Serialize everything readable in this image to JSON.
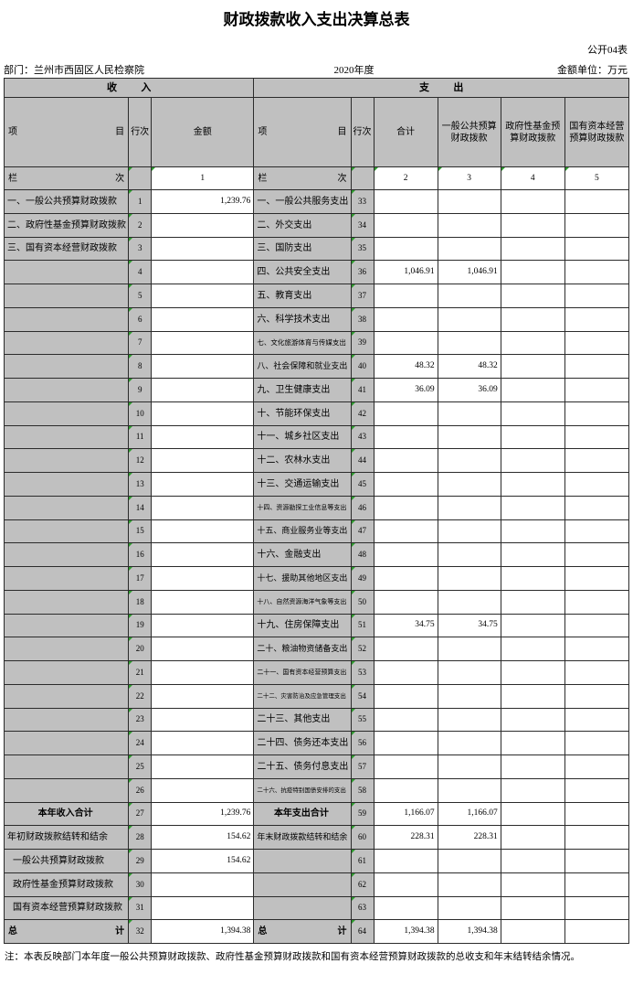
{
  "title": "财政拨款收入支出决算总表",
  "meta": {
    "table_code": "公开04表",
    "department": "部门：兰州市西固区人民检察院",
    "year": "2020年度",
    "unit": "金额单位：万元"
  },
  "colors": {
    "header_bg": "#c0c0c0",
    "marker_green": "#2e9b2e",
    "grid": "#2b2b2b"
  },
  "table": {
    "sections": {
      "income": "收入",
      "expense": "支出"
    },
    "headers": {
      "item": "项目",
      "line": "行次",
      "amount": "金额",
      "total": "合计",
      "general": "一般公共预算财政拨款",
      "gov_fund": "政府性基金预算财政拨款",
      "state_capital": "国有资本经营预算财政拨款"
    },
    "column_index_row": {
      "label": "栏次",
      "income_col": "1",
      "expense_cols": [
        "2",
        "3",
        "4",
        "5"
      ]
    },
    "rows": [
      {
        "income_item": "一、一般公共预算财政拨款",
        "income_line": "1",
        "income_amount": "1,239.76",
        "expense_item": "一、一般公共服务支出",
        "expense_line": "33",
        "total": "",
        "general": "",
        "gov_fund": "",
        "state_capital": ""
      },
      {
        "income_item": "二、政府性基金预算财政拨款",
        "income_line": "2",
        "income_amount": "",
        "expense_item": "二、外交支出",
        "expense_line": "34",
        "total": "",
        "general": "",
        "gov_fund": "",
        "state_capital": ""
      },
      {
        "income_item": "三、国有资本经营财政拨款",
        "income_line": "3",
        "income_amount": "",
        "expense_item": "三、国防支出",
        "expense_line": "35",
        "total": "",
        "general": "",
        "gov_fund": "",
        "state_capital": ""
      },
      {
        "income_item": "",
        "income_line": "4",
        "income_amount": "",
        "expense_item": "四、公共安全支出",
        "expense_line": "36",
        "total": "1,046.91",
        "general": "1,046.91",
        "gov_fund": "",
        "state_capital": ""
      },
      {
        "income_item": "",
        "income_line": "5",
        "income_amount": "",
        "expense_item": "五、教育支出",
        "expense_line": "37",
        "total": "",
        "general": "",
        "gov_fund": "",
        "state_capital": ""
      },
      {
        "income_item": "",
        "income_line": "6",
        "income_amount": "",
        "expense_item": "六、科学技术支出",
        "expense_line": "38",
        "total": "",
        "general": "",
        "gov_fund": "",
        "state_capital": ""
      },
      {
        "income_item": "",
        "income_line": "7",
        "income_amount": "",
        "expense_item": "七、文化旅游体育与传媒支出",
        "expense_line": "39",
        "total": "",
        "general": "",
        "gov_fund": "",
        "state_capital": ""
      },
      {
        "income_item": "",
        "income_line": "8",
        "income_amount": "",
        "expense_item": "八、社会保障和就业支出",
        "expense_line": "40",
        "total": "48.32",
        "general": "48.32",
        "gov_fund": "",
        "state_capital": ""
      },
      {
        "income_item": "",
        "income_line": "9",
        "income_amount": "",
        "expense_item": "九、卫生健康支出",
        "expense_line": "41",
        "total": "36.09",
        "general": "36.09",
        "gov_fund": "",
        "state_capital": ""
      },
      {
        "income_item": "",
        "income_line": "10",
        "income_amount": "",
        "expense_item": "十、节能环保支出",
        "expense_line": "42",
        "total": "",
        "general": "",
        "gov_fund": "",
        "state_capital": ""
      },
      {
        "income_item": "",
        "income_line": "11",
        "income_amount": "",
        "expense_item": "十一、城乡社区支出",
        "expense_line": "43",
        "total": "",
        "general": "",
        "gov_fund": "",
        "state_capital": ""
      },
      {
        "income_item": "",
        "income_line": "12",
        "income_amount": "",
        "expense_item": "十二、农林水支出",
        "expense_line": "44",
        "total": "",
        "general": "",
        "gov_fund": "",
        "state_capital": ""
      },
      {
        "income_item": "",
        "income_line": "13",
        "income_amount": "",
        "expense_item": "十三、交通运输支出",
        "expense_line": "45",
        "total": "",
        "general": "",
        "gov_fund": "",
        "state_capital": ""
      },
      {
        "income_item": "",
        "income_line": "14",
        "income_amount": "",
        "expense_item": "十四、资源勘探工业信息等支出",
        "expense_line": "46",
        "total": "",
        "general": "",
        "gov_fund": "",
        "state_capital": ""
      },
      {
        "income_item": "",
        "income_line": "15",
        "income_amount": "",
        "expense_item": "十五、商业服务业等支出",
        "expense_line": "47",
        "total": "",
        "general": "",
        "gov_fund": "",
        "state_capital": ""
      },
      {
        "income_item": "",
        "income_line": "16",
        "income_amount": "",
        "expense_item": "十六、金融支出",
        "expense_line": "48",
        "total": "",
        "general": "",
        "gov_fund": "",
        "state_capital": ""
      },
      {
        "income_item": "",
        "income_line": "17",
        "income_amount": "",
        "expense_item": "十七、援助其他地区支出",
        "expense_line": "49",
        "total": "",
        "general": "",
        "gov_fund": "",
        "state_capital": ""
      },
      {
        "income_item": "",
        "income_line": "18",
        "income_amount": "",
        "expense_item": "十八、自然资源海洋气象等支出",
        "expense_line": "50",
        "total": "",
        "general": "",
        "gov_fund": "",
        "state_capital": ""
      },
      {
        "income_item": "",
        "income_line": "19",
        "income_amount": "",
        "expense_item": "十九、住房保障支出",
        "expense_line": "51",
        "total": "34.75",
        "general": "34.75",
        "gov_fund": "",
        "state_capital": ""
      },
      {
        "income_item": "",
        "income_line": "20",
        "income_amount": "",
        "expense_item": "二十、粮油物资储备支出",
        "expense_line": "52",
        "total": "",
        "general": "",
        "gov_fund": "",
        "state_capital": ""
      },
      {
        "income_item": "",
        "income_line": "21",
        "income_amount": "",
        "expense_item": "二十一、国有资本经营预算支出",
        "expense_line": "53",
        "total": "",
        "general": "",
        "gov_fund": "",
        "state_capital": ""
      },
      {
        "income_item": "",
        "income_line": "22",
        "income_amount": "",
        "expense_item": "二十二、灾害防治及应急管理支出",
        "expense_line": "54",
        "total": "",
        "general": "",
        "gov_fund": "",
        "state_capital": ""
      },
      {
        "income_item": "",
        "income_line": "23",
        "income_amount": "",
        "expense_item": "二十三、其他支出",
        "expense_line": "55",
        "total": "",
        "general": "",
        "gov_fund": "",
        "state_capital": ""
      },
      {
        "income_item": "",
        "income_line": "24",
        "income_amount": "",
        "expense_item": "二十四、债务还本支出",
        "expense_line": "56",
        "total": "",
        "general": "",
        "gov_fund": "",
        "state_capital": ""
      },
      {
        "income_item": "",
        "income_line": "25",
        "income_amount": "",
        "expense_item": "二十五、债务付息支出",
        "expense_line": "57",
        "total": "",
        "general": "",
        "gov_fund": "",
        "state_capital": ""
      },
      {
        "income_item": "",
        "income_line": "26",
        "income_amount": "",
        "expense_item": "二十六、抗疫特别国债安排的支出",
        "expense_line": "58",
        "total": "",
        "general": "",
        "gov_fund": "",
        "state_capital": ""
      },
      {
        "income_item": "本年收入合计",
        "income_emphasis": "subtotal",
        "income_line": "27",
        "income_amount": "1,239.76",
        "expense_item": "本年支出合计",
        "expense_emphasis": "subtotal",
        "expense_line": "59",
        "total": "1,166.07",
        "general": "1,166.07",
        "gov_fund": "",
        "state_capital": ""
      },
      {
        "income_item": "年初财政拨款结转和结余",
        "income_line": "28",
        "income_amount": "154.62",
        "expense_item": "年末财政拨款结转和结余",
        "expense_line": "60",
        "total": "228.31",
        "general": "228.31",
        "gov_fund": "",
        "state_capital": ""
      },
      {
        "income_item": "一般公共预算财政拨款",
        "income_emphasis": "indent",
        "income_line": "29",
        "income_amount": "154.62",
        "expense_item": "",
        "expense_line": "61",
        "total": "",
        "general": "",
        "gov_fund": "",
        "state_capital": ""
      },
      {
        "income_item": "政府性基金预算财政拨款",
        "income_emphasis": "indent",
        "income_line": "30",
        "income_amount": "",
        "expense_item": "",
        "expense_line": "62",
        "total": "",
        "general": "",
        "gov_fund": "",
        "state_capital": ""
      },
      {
        "income_item": "国有资本经营预算财政拨款",
        "income_emphasis": "indent",
        "income_line": "31",
        "income_amount": "",
        "expense_item": "",
        "expense_line": "63",
        "total": "",
        "general": "",
        "gov_fund": "",
        "state_capital": ""
      },
      {
        "income_item": "总计",
        "income_emphasis": "grand_total",
        "income_line": "32",
        "income_amount": "1,394.38",
        "expense_item": "总计",
        "expense_emphasis": "grand_total",
        "expense_line": "64",
        "total": "1,394.38",
        "general": "1,394.38",
        "gov_fund": "",
        "state_capital": ""
      }
    ]
  },
  "note": "注：本表反映部门本年度一般公共预算财政拨款、政府性基金预算财政拨款和国有资本经营预算财政拨款的总收支和年末结转结余情况。"
}
